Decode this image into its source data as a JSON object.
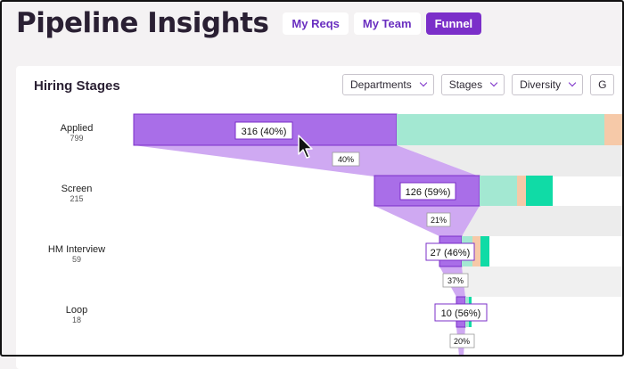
{
  "header": {
    "title": "Pipeline Insights",
    "tabs": [
      {
        "label": "My Reqs",
        "active": false
      },
      {
        "label": "My Team",
        "active": false
      },
      {
        "label": "Funnel",
        "active": true
      }
    ]
  },
  "card": {
    "title": "Hiring Stages",
    "filters": [
      {
        "label": "Departments"
      },
      {
        "label": "Stages"
      },
      {
        "label": "Diversity"
      },
      {
        "label": "G"
      }
    ]
  },
  "colors": {
    "brand": "#7b2fc9",
    "bar_purple": "#a96ee8",
    "bar_mint": "#a3e8d2",
    "bar_peach": "#f6c9a8",
    "bar_teal": "#10dba6",
    "flow_purple": "#cfa9f2",
    "flow_gray": "#ececec"
  },
  "chart_data": {
    "type": "bar",
    "stages": [
      {
        "name": "Applied",
        "count": "799",
        "advanced_label": "316 (40%)",
        "conversion_label": "40%"
      },
      {
        "name": "Screen",
        "count": "215",
        "advanced_label": "126 (59%)",
        "conversion_label": "21%"
      },
      {
        "name": "HM Interview",
        "count": "59",
        "advanced_label": "27 (46%)",
        "conversion_label": "37%"
      },
      {
        "name": "Loop",
        "count": "18",
        "advanced_label": "10 (56%)",
        "conversion_label": "20%"
      }
    ]
  }
}
